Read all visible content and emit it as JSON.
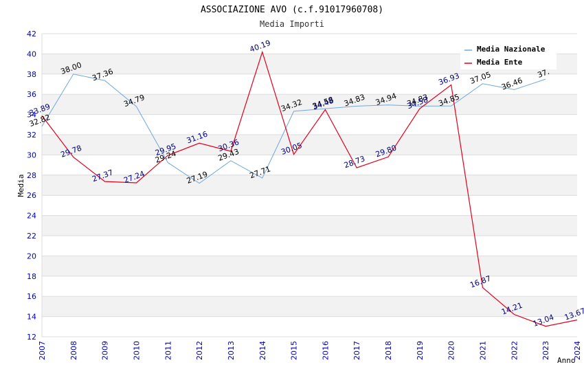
{
  "colors": {
    "national": "#6fa8dc",
    "ente": "#e0001b",
    "tick": "#0000c0",
    "band": "#f2f2f2",
    "grid": "#dcdcdc",
    "label_national": "#000000",
    "label_ente": "#000080"
  },
  "chart_data": {
    "type": "line",
    "title": "ASSOCIAZIONE AVO (c.f.91017960708)",
    "subtitle": "Media Importi",
    "xlabel": "Anno",
    "ylabel": "Media",
    "ylim": [
      12,
      42
    ],
    "yticks": [
      12,
      14,
      16,
      18,
      20,
      22,
      24,
      26,
      28,
      30,
      32,
      34,
      36,
      38,
      40,
      42
    ],
    "categories": [
      "2007",
      "2008",
      "2009",
      "2010",
      "2011",
      "2012",
      "2013",
      "2014",
      "2015",
      "2016",
      "2017",
      "2018",
      "2019",
      "2020",
      "2021",
      "2022",
      "2023",
      "2024"
    ],
    "grid": true,
    "legend": "top-right",
    "series": [
      {
        "name": "Media Nazionale",
        "color_key": "national",
        "values": [
          32.82,
          38.0,
          37.36,
          34.79,
          29.24,
          27.19,
          29.43,
          27.71,
          34.32,
          34.58,
          34.83,
          34.94,
          34.83,
          34.85,
          37.05,
          36.46,
          37.5,
          null
        ],
        "labels": [
          "32.82",
          "38.00",
          "37.36",
          "34.79",
          "29.24",
          "27.19",
          "29.43",
          "27.71",
          "34.32",
          "34.58",
          "34.83",
          "34.94",
          "34.83",
          "34.85",
          "37.05",
          "36.46",
          "37.",
          ""
        ]
      },
      {
        "name": "Media Ente",
        "color_key": "ente",
        "values": [
          33.89,
          29.78,
          27.37,
          27.24,
          29.95,
          31.16,
          30.36,
          40.19,
          30.05,
          34.48,
          28.73,
          29.8,
          34.58,
          36.93,
          16.87,
          14.21,
          13.04,
          13.67
        ],
        "labels": [
          "33.89",
          "29.78",
          "27.37",
          "27.24",
          "29.95",
          "31.16",
          "30.36",
          "40.19",
          "30.05",
          "34.48",
          "28.73",
          "29.80",
          "34.58",
          "36.93",
          "16.87",
          "14.21",
          "13.04",
          "13.67"
        ]
      }
    ]
  }
}
